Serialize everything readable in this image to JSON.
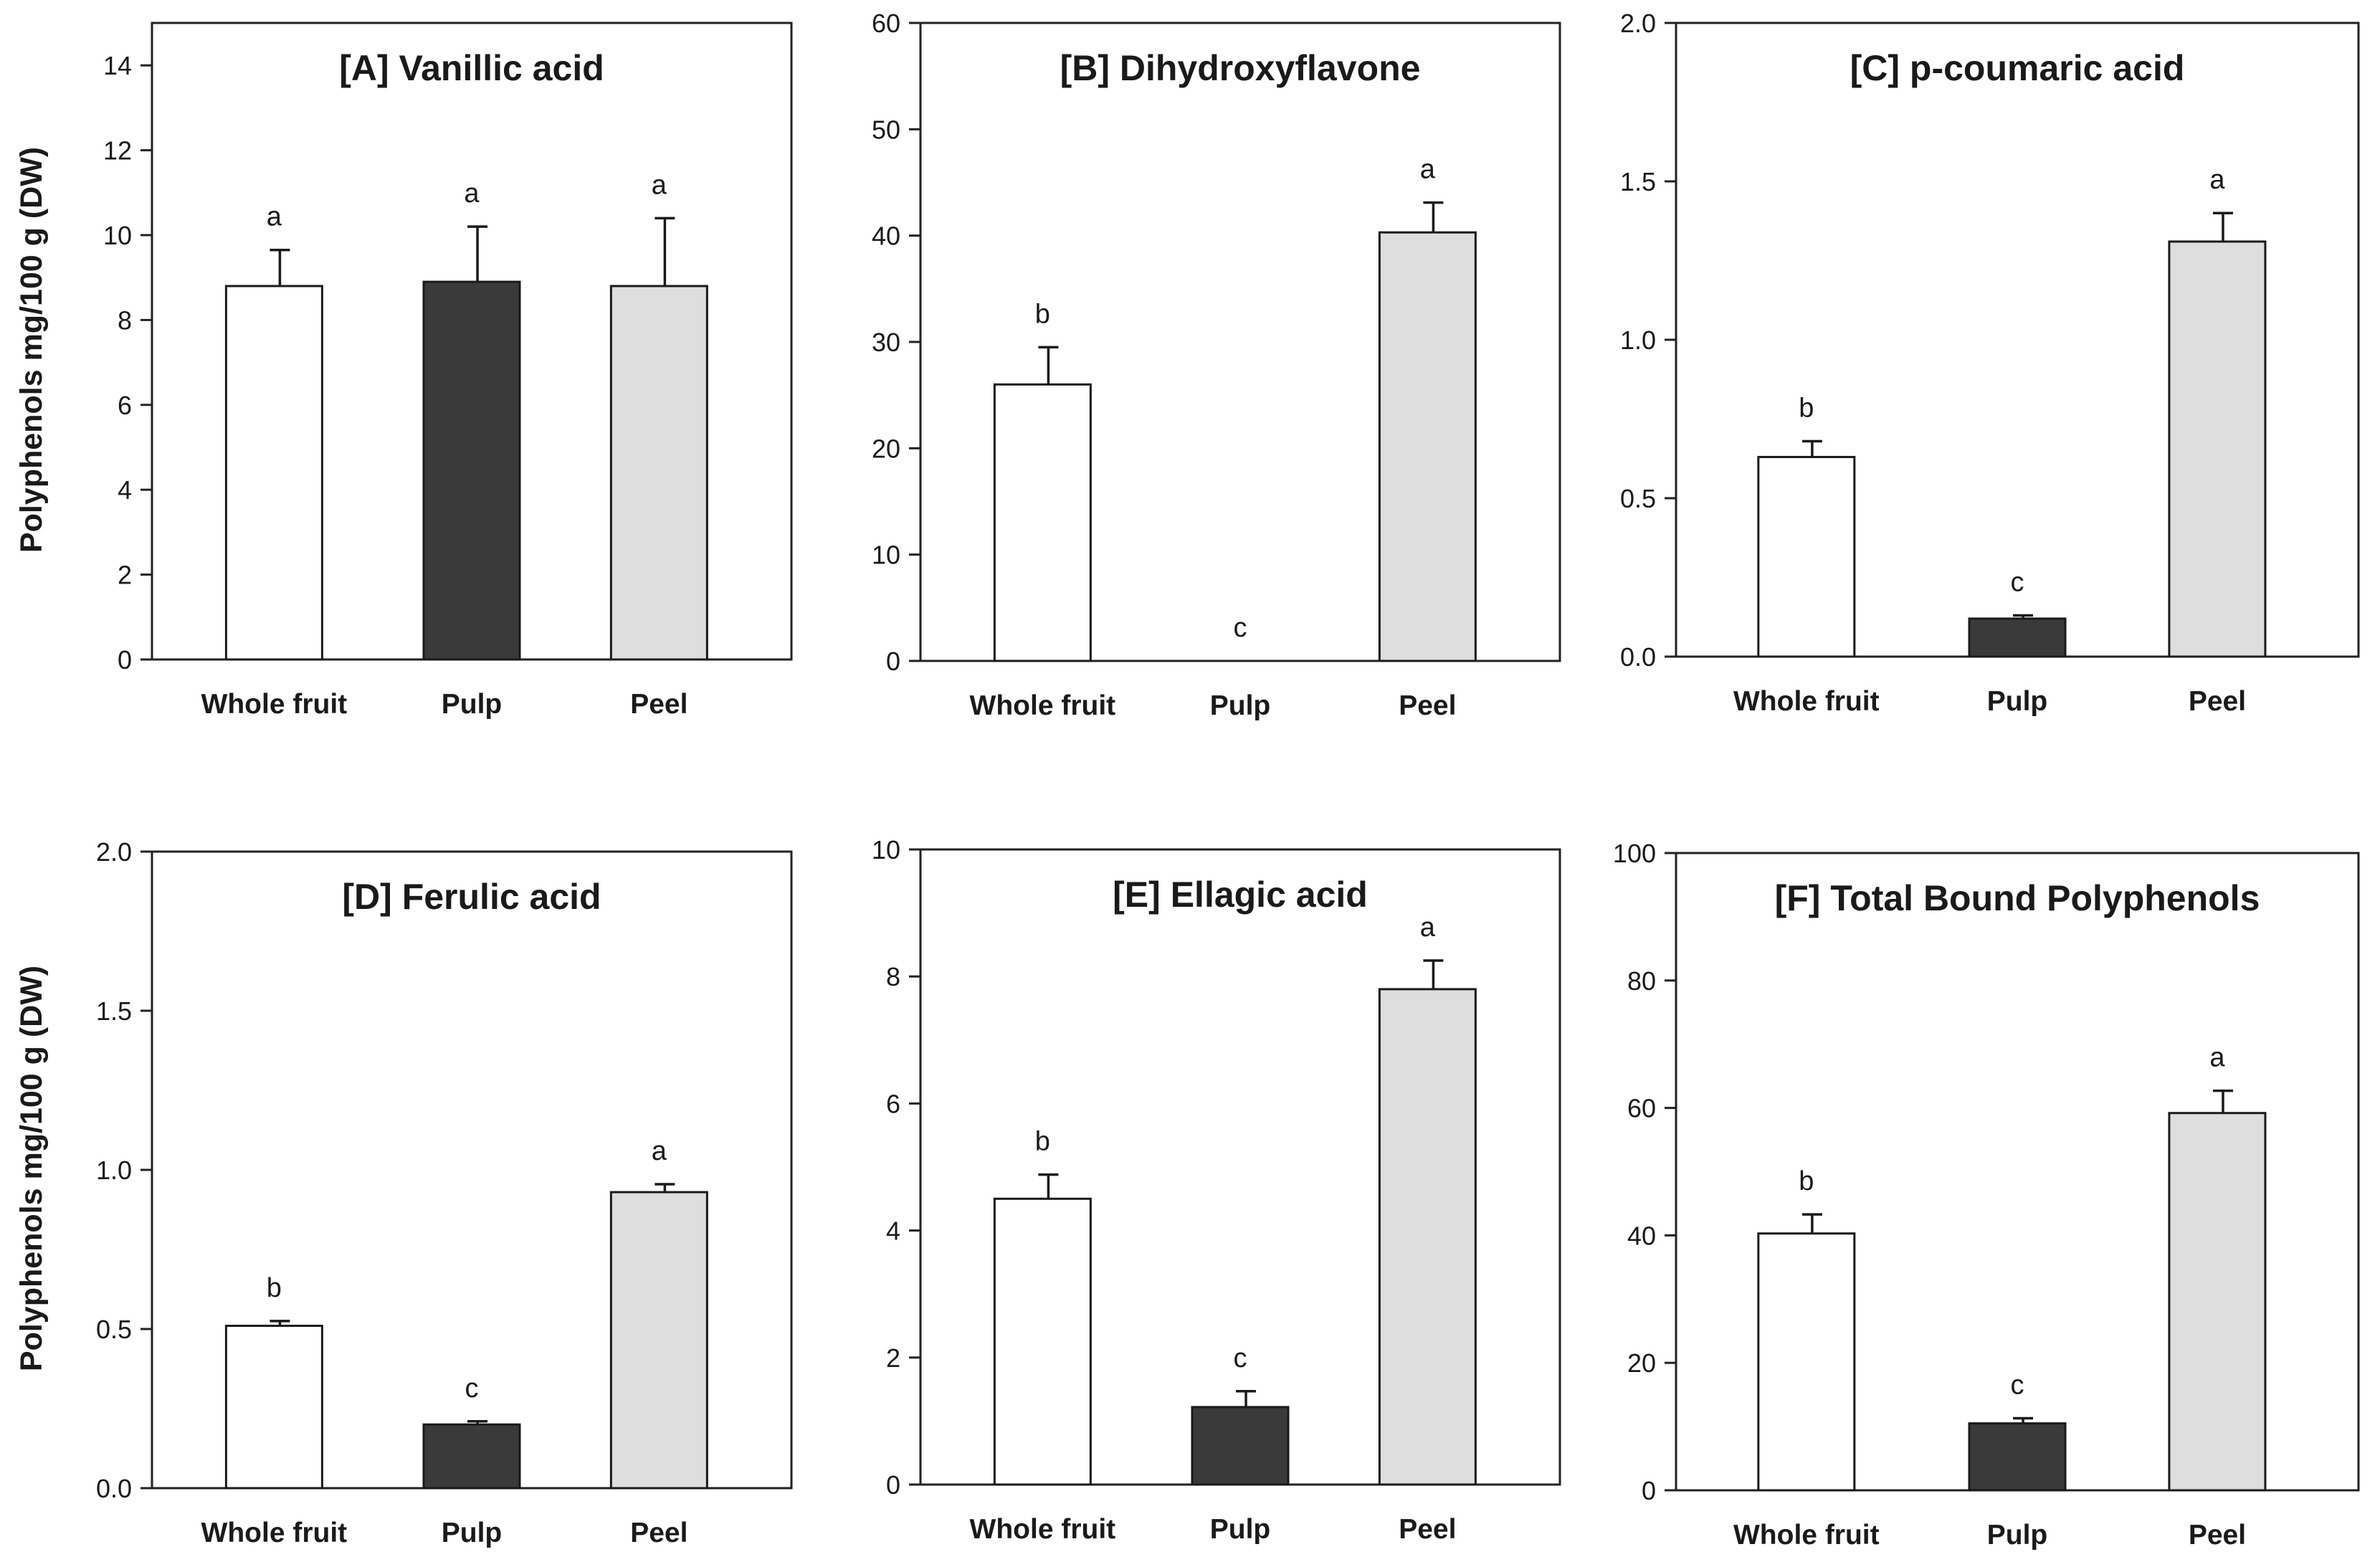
{
  "figure": {
    "ylabel_top": "Polyphenols mg/100 g (DW)",
    "ylabel_bottom": "Polyphenols mg/100 g (DW)"
  },
  "colors": {
    "Whole fruit": "#ffffff",
    "Pulp": "#3a3a3a",
    "Peel": "#dedede"
  },
  "chart_data": [
    {
      "type": "bar",
      "title": "[A]  Vanillic acid",
      "categories": [
        "Whole fruit",
        "Pulp",
        "Peel"
      ],
      "values": [
        8.8,
        8.9,
        8.8
      ],
      "errors": [
        0.85,
        1.3,
        1.6
      ],
      "letters": [
        "a",
        "a",
        "a"
      ],
      "ylim": [
        0,
        15
      ],
      "yticks": [
        0,
        2,
        4,
        6,
        8,
        10,
        12,
        14
      ],
      "ytick_labels": [
        "0",
        "2",
        "4",
        "6",
        "8",
        "10",
        "12",
        "14"
      ],
      "ylabel": "Polyphenols mg/100 g (DW)"
    },
    {
      "type": "bar",
      "title": "[B]  Dihydroxyflavone",
      "categories": [
        "Whole fruit",
        "Pulp",
        "Peel"
      ],
      "values": [
        26.0,
        0,
        40.3
      ],
      "errors": [
        3.5,
        0,
        2.8
      ],
      "letters": [
        "b",
        "c",
        "a"
      ],
      "ylim": [
        0,
        60
      ],
      "yticks": [
        0,
        10,
        20,
        30,
        40,
        50,
        60
      ],
      "ytick_labels": [
        "0",
        "10",
        "20",
        "30",
        "40",
        "50",
        "60"
      ],
      "ylabel": ""
    },
    {
      "type": "bar",
      "title": "[C]  p-coumaric acid",
      "categories": [
        "Whole fruit",
        "Pulp",
        "Peel"
      ],
      "values": [
        0.63,
        0.12,
        1.31
      ],
      "errors": [
        0.05,
        0.01,
        0.09
      ],
      "letters": [
        "b",
        "c",
        "a"
      ],
      "ylim": [
        0,
        2.0
      ],
      "yticks": [
        0,
        0.5,
        1.0,
        1.5,
        2.0
      ],
      "ytick_labels": [
        "0.0",
        "0.5",
        "1.0",
        "1.5",
        "2.0"
      ],
      "ylabel": ""
    },
    {
      "type": "bar",
      "title": "[D]  Ferulic acid",
      "categories": [
        "Whole fruit",
        "Pulp",
        "Peel"
      ],
      "values": [
        0.51,
        0.2,
        0.93
      ],
      "errors": [
        0.015,
        0.01,
        0.025
      ],
      "letters": [
        "b",
        "c",
        "a"
      ],
      "ylim": [
        0,
        2.0
      ],
      "yticks": [
        0,
        0.5,
        1.0,
        1.5,
        2.0
      ],
      "ytick_labels": [
        "0.0",
        "0.5",
        "1.0",
        "1.5",
        "2.0"
      ],
      "ylabel": "Polyphenols mg/100 g (DW)"
    },
    {
      "type": "bar",
      "title": "[E]  Ellagic acid",
      "categories": [
        "Whole fruit",
        "Pulp",
        "Peel"
      ],
      "values": [
        4.5,
        1.22,
        7.8
      ],
      "errors": [
        0.38,
        0.25,
        0.45
      ],
      "letters": [
        "b",
        "c",
        "a"
      ],
      "ylim": [
        0,
        10
      ],
      "yticks": [
        0,
        2,
        4,
        6,
        8,
        10
      ],
      "ytick_labels": [
        "0",
        "2",
        "4",
        "6",
        "8",
        "10"
      ],
      "ylabel": ""
    },
    {
      "type": "bar",
      "title": "[F] Total Bound Polyphenols",
      "categories": [
        "Whole fruit",
        "Pulp",
        "Peel"
      ],
      "values": [
        40.3,
        10.5,
        59.2
      ],
      "errors": [
        3.0,
        0.8,
        3.5
      ],
      "letters": [
        "b",
        "c",
        "a"
      ],
      "ylim": [
        0,
        100
      ],
      "yticks": [
        0,
        20,
        40,
        60,
        80,
        100
      ],
      "ytick_labels": [
        "0",
        "20",
        "40",
        "60",
        "80",
        "100"
      ],
      "ylabel": ""
    }
  ]
}
